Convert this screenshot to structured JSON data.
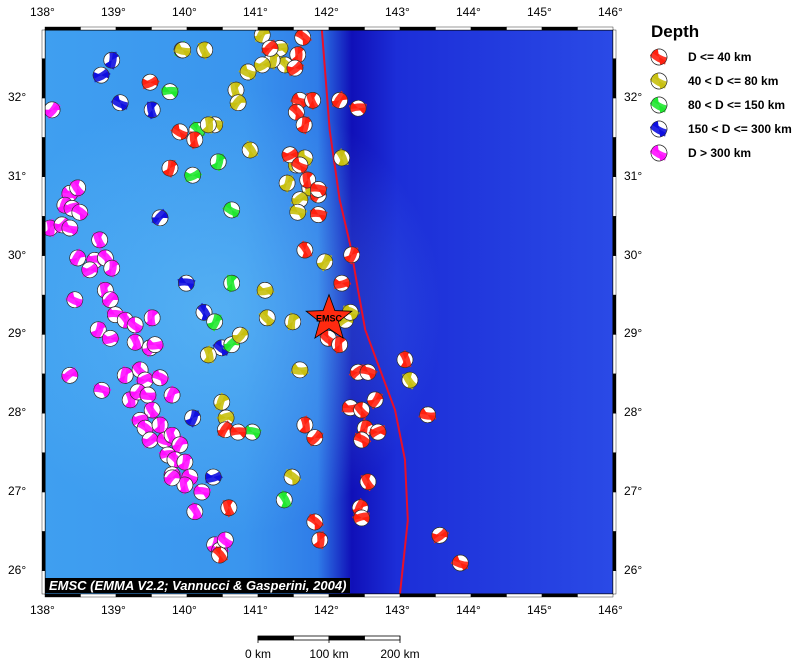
{
  "map": {
    "lon_range": [
      138,
      146.2
    ],
    "lat_range": [
      25.7,
      32.86
    ],
    "lon_ticks": [
      "138°",
      "139°",
      "140°",
      "141°",
      "142°",
      "143°",
      "144°",
      "145°",
      "146°"
    ],
    "lat_ticks": [
      "26°",
      "27°",
      "28°",
      "29°",
      "30°",
      "31°",
      "32°"
    ],
    "credit": "EMSC (EMMA V2.2; Vannucci & Gasperini, 2004)",
    "epicenter": {
      "label": "EMSC",
      "lon": 142.0,
      "lat": 29.2,
      "color": "#ff2a10"
    },
    "plate_boundary_color": "#e8102a",
    "plate_boundary": [
      [
        141.9,
        32.86
      ],
      [
        142.01,
        31.59
      ],
      [
        142.15,
        30.71
      ],
      [
        142.3,
        30.13
      ],
      [
        142.41,
        29.56
      ],
      [
        142.51,
        29.06
      ],
      [
        142.72,
        28.55
      ],
      [
        142.93,
        28.04
      ],
      [
        143.07,
        27.41
      ],
      [
        143.11,
        26.64
      ],
      [
        143.0,
        25.71
      ]
    ]
  },
  "legend": {
    "title": "Depth",
    "items": [
      {
        "label": "D <= 40 km",
        "color": "#ff2010"
      },
      {
        "label": "40 < D <= 80 km",
        "color": "#c8c010"
      },
      {
        "label": "80 < D <= 150 km",
        "color": "#20e830"
      },
      {
        "label": "150 < D <= 300 km",
        "color": "#1010e0"
      },
      {
        "label": "D > 300 km",
        "color": "#ff10ff"
      }
    ]
  },
  "scale_bar": {
    "labels": [
      "0 km",
      "100 km",
      "200 km"
    ]
  },
  "events": {
    "shallow": [
      [
        141.63,
        32.77
      ],
      [
        141.56,
        32.55
      ],
      [
        141.52,
        32.38
      ],
      [
        141.59,
        31.97
      ],
      [
        141.77,
        31.97
      ],
      [
        142.15,
        31.97
      ],
      [
        142.41,
        31.87
      ],
      [
        141.54,
        31.82
      ],
      [
        141.65,
        31.66
      ],
      [
        141.45,
        31.28
      ],
      [
        141.59,
        31.15
      ],
      [
        141.7,
        30.96
      ],
      [
        141.85,
        30.77
      ],
      [
        141.85,
        30.52
      ],
      [
        141.66,
        30.07
      ],
      [
        142.32,
        30.01
      ],
      [
        142.18,
        29.65
      ],
      [
        141.99,
        28.95
      ],
      [
        142.15,
        28.87
      ],
      [
        142.41,
        28.52
      ],
      [
        142.55,
        28.52
      ],
      [
        143.07,
        28.68
      ],
      [
        142.65,
        28.17
      ],
      [
        142.3,
        28.07
      ],
      [
        142.46,
        28.04
      ],
      [
        142.51,
        27.81
      ],
      [
        142.69,
        27.76
      ],
      [
        142.46,
        27.66
      ],
      [
        141.66,
        27.85
      ],
      [
        141.8,
        27.69
      ],
      [
        143.39,
        27.98
      ],
      [
        142.55,
        27.13
      ],
      [
        142.44,
        26.8
      ],
      [
        142.46,
        26.67
      ],
      [
        141.8,
        26.62
      ],
      [
        141.87,
        26.39
      ],
      [
        143.56,
        26.45
      ],
      [
        143.85,
        26.1
      ],
      [
        140.59,
        26.8
      ],
      [
        140.54,
        27.79
      ],
      [
        140.72,
        27.76
      ],
      [
        140.46,
        26.2
      ],
      [
        139.76,
        31.11
      ],
      [
        139.48,
        32.2
      ],
      [
        139.9,
        31.57
      ],
      [
        140.11,
        31.47
      ],
      [
        141.17,
        32.63
      ],
      [
        141.85,
        30.84
      ]
    ],
    "intermediate": [
      [
        139.94,
        32.61
      ],
      [
        140.25,
        32.61
      ],
      [
        141.06,
        32.8
      ],
      [
        141.31,
        32.63
      ],
      [
        141.38,
        32.42
      ],
      [
        141.2,
        32.48
      ],
      [
        141.06,
        32.42
      ],
      [
        140.86,
        32.33
      ],
      [
        140.69,
        32.1
      ],
      [
        140.72,
        31.94
      ],
      [
        140.39,
        31.66
      ],
      [
        140.89,
        31.34
      ],
      [
        141.41,
        30.92
      ],
      [
        141.54,
        31.15
      ],
      [
        141.66,
        31.24
      ],
      [
        141.73,
        30.86
      ],
      [
        141.59,
        30.71
      ],
      [
        141.56,
        30.55
      ],
      [
        142.18,
        31.24
      ],
      [
        141.94,
        29.92
      ],
      [
        141.1,
        29.56
      ],
      [
        141.13,
        29.21
      ],
      [
        141.49,
        29.16
      ],
      [
        142.23,
        29.18
      ],
      [
        142.3,
        29.28
      ],
      [
        140.3,
        28.74
      ],
      [
        140.75,
        28.99
      ],
      [
        141.59,
        28.55
      ],
      [
        143.14,
        28.42
      ],
      [
        140.49,
        28.14
      ],
      [
        140.55,
        27.94
      ],
      [
        141.48,
        27.19
      ],
      [
        140.3,
        31.66
      ]
    ],
    "deep": [
      [
        139.93,
        32.61
      ],
      [
        139.76,
        32.08
      ],
      [
        140.14,
        31.59
      ],
      [
        140.44,
        31.19
      ],
      [
        140.08,
        31.02
      ],
      [
        140.63,
        30.58
      ],
      [
        140.63,
        29.65
      ],
      [
        140.63,
        28.87
      ],
      [
        140.92,
        27.76
      ],
      [
        141.37,
        26.9
      ],
      [
        140.39,
        29.16
      ]
    ],
    "very_deep": [
      [
        138.94,
        32.48
      ],
      [
        138.79,
        32.29
      ],
      [
        139.06,
        31.94
      ],
      [
        139.51,
        31.85
      ],
      [
        139.62,
        30.48
      ],
      [
        139.99,
        29.65
      ],
      [
        140.24,
        29.28
      ],
      [
        140.08,
        27.94
      ],
      [
        140.37,
        27.19
      ],
      [
        140.49,
        28.83
      ]
    ],
    "ultra_deep": [
      [
        138.1,
        31.85
      ],
      [
        138.35,
        30.79
      ],
      [
        138.46,
        30.86
      ],
      [
        138.28,
        30.64
      ],
      [
        138.38,
        30.6
      ],
      [
        138.49,
        30.55
      ],
      [
        138.07,
        30.35
      ],
      [
        138.24,
        30.39
      ],
      [
        138.35,
        30.35
      ],
      [
        138.77,
        30.2
      ],
      [
        138.46,
        29.97
      ],
      [
        138.7,
        29.94
      ],
      [
        138.85,
        29.97
      ],
      [
        138.94,
        29.84
      ],
      [
        138.63,
        29.82
      ],
      [
        138.42,
        29.44
      ],
      [
        138.85,
        29.56
      ],
      [
        138.92,
        29.44
      ],
      [
        138.99,
        29.25
      ],
      [
        139.13,
        29.18
      ],
      [
        138.75,
        29.06
      ],
      [
        138.92,
        28.95
      ],
      [
        139.27,
        29.12
      ],
      [
        139.51,
        29.21
      ],
      [
        138.35,
        28.48
      ],
      [
        138.8,
        28.29
      ],
      [
        139.27,
        28.9
      ],
      [
        139.48,
        28.83
      ],
      [
        139.55,
        28.87
      ],
      [
        139.34,
        28.55
      ],
      [
        139.13,
        28.48
      ],
      [
        139.41,
        28.42
      ],
      [
        139.62,
        28.45
      ],
      [
        139.2,
        28.17
      ],
      [
        139.31,
        28.27
      ],
      [
        139.45,
        28.23
      ],
      [
        139.51,
        28.04
      ],
      [
        139.79,
        28.23
      ],
      [
        139.34,
        27.91
      ],
      [
        139.41,
        27.81
      ],
      [
        139.62,
        27.85
      ],
      [
        139.48,
        27.66
      ],
      [
        139.69,
        27.66
      ],
      [
        139.79,
        27.72
      ],
      [
        139.9,
        27.6
      ],
      [
        139.73,
        27.47
      ],
      [
        139.83,
        27.41
      ],
      [
        139.97,
        27.38
      ],
      [
        139.79,
        27.22
      ],
      [
        140.04,
        27.19
      ],
      [
        139.97,
        27.09
      ],
      [
        139.79,
        27.18
      ],
      [
        140.21,
        27.0
      ],
      [
        140.11,
        26.75
      ],
      [
        140.39,
        26.33
      ],
      [
        140.46,
        26.26
      ],
      [
        140.54,
        26.39
      ]
    ]
  }
}
